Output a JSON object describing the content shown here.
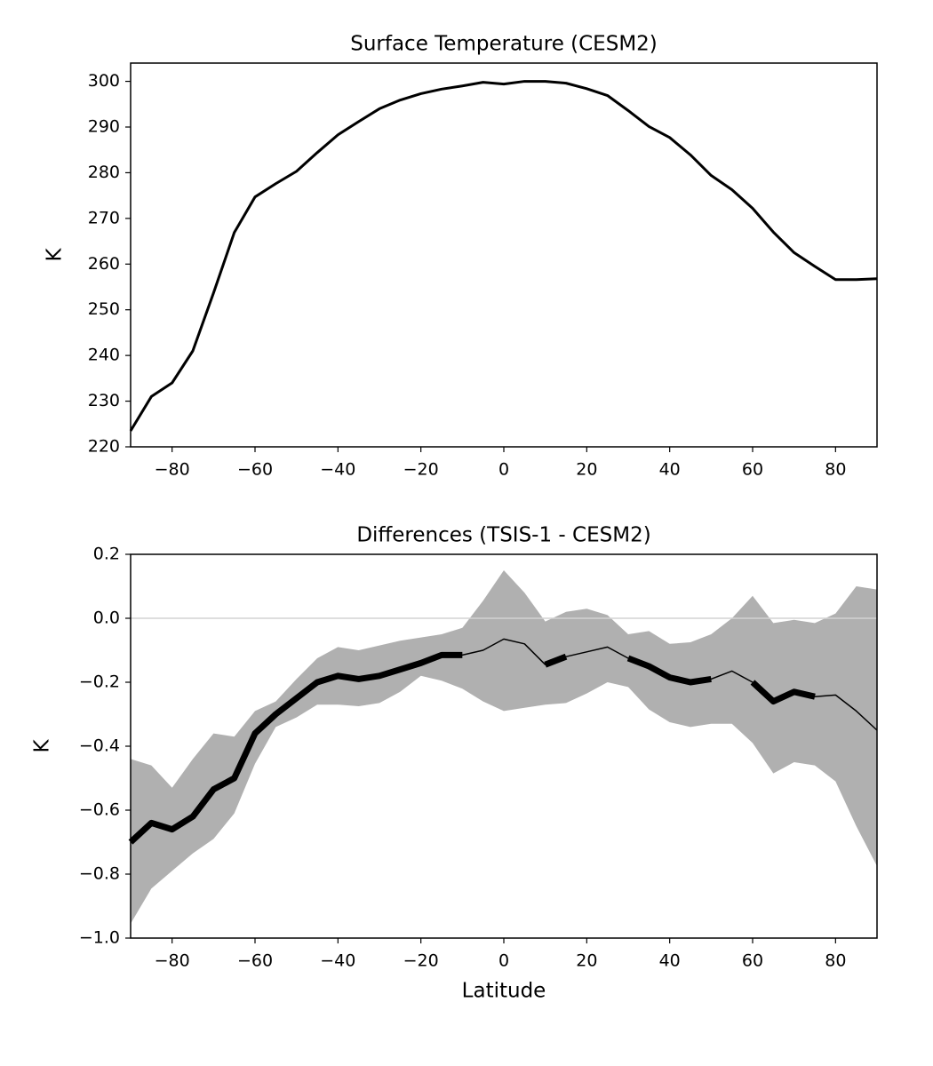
{
  "chart_data": [
    {
      "type": "line",
      "title": "Surface Temperature (CESM2)",
      "ylabel": "K",
      "color": "#000000",
      "x": [
        -90,
        -85,
        -80,
        -75,
        -70,
        -65,
        -60,
        -55,
        -50,
        -45,
        -40,
        -35,
        -30,
        -25,
        -20,
        -15,
        -10,
        -5,
        0,
        5,
        10,
        15,
        20,
        25,
        30,
        35,
        40,
        45,
        50,
        55,
        60,
        65,
        70,
        75,
        80,
        85,
        90
      ],
      "values": [
        223.5,
        231,
        234,
        241,
        253.7,
        266.9,
        274.7,
        277.6,
        280.3,
        284.4,
        288.3,
        291.2,
        294,
        295.9,
        297.3,
        298.3,
        299,
        299.8,
        299.4,
        300,
        300,
        299.6,
        298.4,
        296.9,
        293.6,
        290.1,
        287.7,
        283.9,
        279.4,
        276.3,
        272.2,
        267,
        262.5,
        259.5,
        256.6,
        256.6,
        256.8
      ],
      "xlim": [
        -90,
        90
      ],
      "ylim": [
        220,
        304
      ],
      "xticks": [
        {
          "value": -80,
          "label": "−80"
        },
        {
          "value": -60,
          "label": "−60"
        },
        {
          "value": -40,
          "label": "−40"
        },
        {
          "value": -20,
          "label": "−20"
        },
        0,
        20,
        40,
        60,
        80
      ],
      "yticks": [
        220,
        230,
        240,
        250,
        260,
        270,
        280,
        290,
        300
      ]
    },
    {
      "type": "band",
      "title": "Differences (TSIS-1 - CESM2)",
      "xlabel": "Latitude",
      "ylabel": "K",
      "color": "#000000",
      "band_color": "#b0b0b0",
      "hline": 0,
      "hline_color": "#d3d3d3",
      "x": [
        -90,
        -85,
        -80,
        -75,
        -70,
        -65,
        -60,
        -55,
        -50,
        -45,
        -40,
        -35,
        -30,
        -25,
        -20,
        -15,
        -10,
        -5,
        0,
        5,
        10,
        15,
        20,
        25,
        30,
        35,
        40,
        45,
        50,
        55,
        60,
        65,
        70,
        75,
        80,
        85,
        90
      ],
      "values": [
        -0.7,
        -0.64,
        -0.66,
        -0.62,
        -0.535,
        -0.5,
        -0.36,
        -0.3,
        -0.25,
        -0.2,
        -0.18,
        -0.19,
        -0.18,
        -0.16,
        -0.14,
        -0.115,
        -0.115,
        -0.1,
        -0.065,
        -0.08,
        -0.145,
        -0.12,
        -0.105,
        -0.09,
        -0.125,
        -0.15,
        -0.185,
        -0.2,
        -0.19,
        -0.165,
        -0.2,
        -0.26,
        -0.23,
        -0.245,
        -0.24,
        -0.29,
        -0.35
      ],
      "upper": [
        -0.44,
        -0.46,
        -0.53,
        -0.44,
        -0.36,
        -0.37,
        -0.29,
        -0.26,
        -0.19,
        -0.125,
        -0.09,
        -0.1,
        -0.085,
        -0.07,
        -0.06,
        -0.05,
        -0.03,
        0.055,
        0.15,
        0.08,
        -0.01,
        0.02,
        0.03,
        0.01,
        -0.05,
        -0.04,
        -0.08,
        -0.075,
        -0.05,
        0.0,
        0.07,
        -0.015,
        -0.005,
        -0.015,
        0.015,
        0.1,
        0.09
      ],
      "lower": [
        -0.955,
        -0.845,
        -0.79,
        -0.735,
        -0.69,
        -0.61,
        -0.455,
        -0.34,
        -0.31,
        -0.27,
        -0.27,
        -0.275,
        -0.265,
        -0.23,
        -0.18,
        -0.195,
        -0.22,
        -0.26,
        -0.29,
        -0.28,
        -0.27,
        -0.265,
        -0.235,
        -0.2,
        -0.215,
        -0.285,
        -0.325,
        -0.34,
        -0.33,
        -0.33,
        -0.39,
        -0.485,
        -0.45,
        -0.46,
        -0.51,
        -0.65,
        -0.775
      ],
      "bold": [
        true,
        true,
        true,
        true,
        true,
        true,
        true,
        true,
        true,
        true,
        true,
        true,
        true,
        true,
        true,
        true,
        true,
        false,
        false,
        false,
        true,
        true,
        false,
        false,
        true,
        true,
        true,
        true,
        true,
        false,
        true,
        true,
        true,
        true,
        false,
        false,
        false
      ],
      "xlim": [
        -90,
        90
      ],
      "ylim": [
        -1.0,
        0.2
      ],
      "xticks": [
        {
          "value": -80,
          "label": "−80"
        },
        {
          "value": -60,
          "label": "−60"
        },
        {
          "value": -40,
          "label": "−40"
        },
        {
          "value": -20,
          "label": "−20"
        },
        0,
        20,
        40,
        60,
        80
      ],
      "yticks": [
        {
          "value": -1.0,
          "label": "−1.0"
        },
        {
          "value": -0.8,
          "label": "−0.8"
        },
        {
          "value": -0.6,
          "label": "−0.6"
        },
        {
          "value": -0.4,
          "label": "−0.4"
        },
        {
          "value": -0.2,
          "label": "−0.2"
        },
        {
          "value": 0,
          "label": "0.0"
        },
        0.2
      ]
    }
  ]
}
